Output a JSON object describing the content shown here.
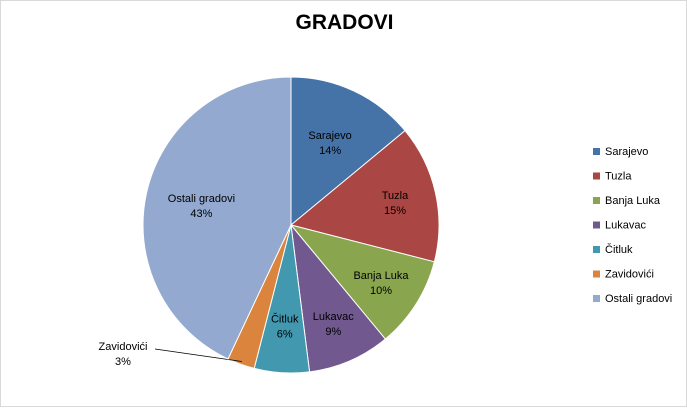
{
  "chart_data": {
    "type": "pie",
    "title": "GRADOVI",
    "categories": [
      "Sarajevo",
      "Tuzla",
      "Banja Luka",
      "Lukavac",
      "Čitluk",
      "Zavidovići",
      "Ostali gradovi"
    ],
    "values": [
      14,
      15,
      10,
      9,
      6,
      3,
      43
    ],
    "value_labels": [
      "14%",
      "15%",
      "10%",
      "9%",
      "6%",
      "3%",
      "43%"
    ],
    "colors": [
      "#4572A7",
      "#AA4643",
      "#89A54E",
      "#71588F",
      "#4198AF",
      "#DB843D",
      "#93A9CF"
    ],
    "start_angle": "12 o'clock",
    "direction": "clockwise",
    "legend_position": "right"
  }
}
